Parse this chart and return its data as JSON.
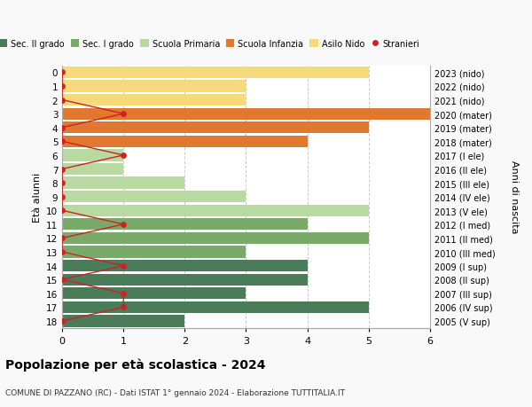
{
  "ages": [
    18,
    17,
    16,
    15,
    14,
    13,
    12,
    11,
    10,
    9,
    8,
    7,
    6,
    5,
    4,
    3,
    2,
    1,
    0
  ],
  "years": [
    "2005 (V sup)",
    "2006 (IV sup)",
    "2007 (III sup)",
    "2008 (II sup)",
    "2009 (I sup)",
    "2010 (III med)",
    "2011 (II med)",
    "2012 (I med)",
    "2013 (V ele)",
    "2014 (IV ele)",
    "2015 (III ele)",
    "2016 (II ele)",
    "2017 (I ele)",
    "2018 (mater)",
    "2019 (mater)",
    "2020 (mater)",
    "2021 (nido)",
    "2022 (nido)",
    "2023 (nido)"
  ],
  "bar_values": [
    2,
    5,
    3,
    4,
    4,
    3,
    5,
    4,
    5,
    3,
    2,
    1,
    1,
    4,
    5,
    6,
    3,
    3,
    5
  ],
  "bar_colors": [
    "#4a7c59",
    "#4a7c59",
    "#4a7c59",
    "#4a7c59",
    "#4a7c59",
    "#7aaa6a",
    "#7aaa6a",
    "#7aaa6a",
    "#b8d9a0",
    "#b8d9a0",
    "#b8d9a0",
    "#b8d9a0",
    "#b8d9a0",
    "#e07830",
    "#e07830",
    "#e07830",
    "#f5d97a",
    "#f5d97a",
    "#f5d97a"
  ],
  "stranieri_values": [
    0,
    1,
    1,
    0,
    1,
    0,
    0,
    1,
    0,
    0,
    0,
    0,
    1,
    0,
    0,
    1,
    0,
    0,
    0
  ],
  "legend_labels": [
    "Sec. II grado",
    "Sec. I grado",
    "Scuola Primaria",
    "Scuola Infanzia",
    "Asilo Nido",
    "Stranieri"
  ],
  "legend_colors": [
    "#4a7c59",
    "#7aaa6a",
    "#b8d9a0",
    "#e07830",
    "#f5d97a",
    "#cc2222"
  ],
  "title": "Popolazione per età scolastica - 2024",
  "subtitle": "COMUNE DI PAZZANO (RC) - Dati ISTAT 1° gennaio 2024 - Elaborazione TUTTITALIA.IT",
  "ylabel": "Età alunni",
  "ylabel2": "Anni di nascita",
  "xlim": [
    0,
    6
  ],
  "background_color": "#f9f9f9",
  "bar_background": "#ffffff",
  "stranieri_color": "#cc2222",
  "grid_color": "#cccccc"
}
